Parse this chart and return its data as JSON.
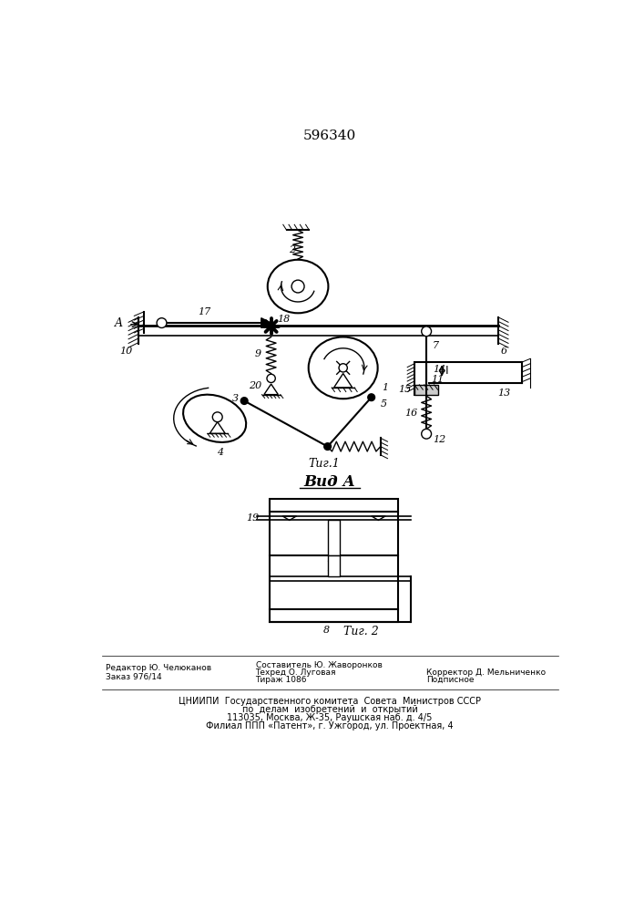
{
  "title": "596340",
  "view_label": "Вид А",
  "footer_editor": "Редактор Ю. Челюканов",
  "footer_order": "Заказ 976/14",
  "footer_composer": "Составитель Ю. Жаворонков",
  "footer_techred": "Техред О. Луговая",
  "footer_tirazh": "Тираж 1086",
  "footer_corrector": "Корректор Д. Мельниченко",
  "footer_podp": "Подписное",
  "footer_cniip": "ЦНИИПИ  Государственного комитета  Совета  Министров СССР",
  "footer_po": "по  делам  изобретений  и  открытий",
  "footer_addr": "113035, Москва, Ж-35, Раушская наб. д. 4/5",
  "footer_filial": "Филиал ППП «Патент», г. Ужгород, ул. Проектная, 4",
  "bg_color": "#ffffff",
  "line_color": "#000000"
}
